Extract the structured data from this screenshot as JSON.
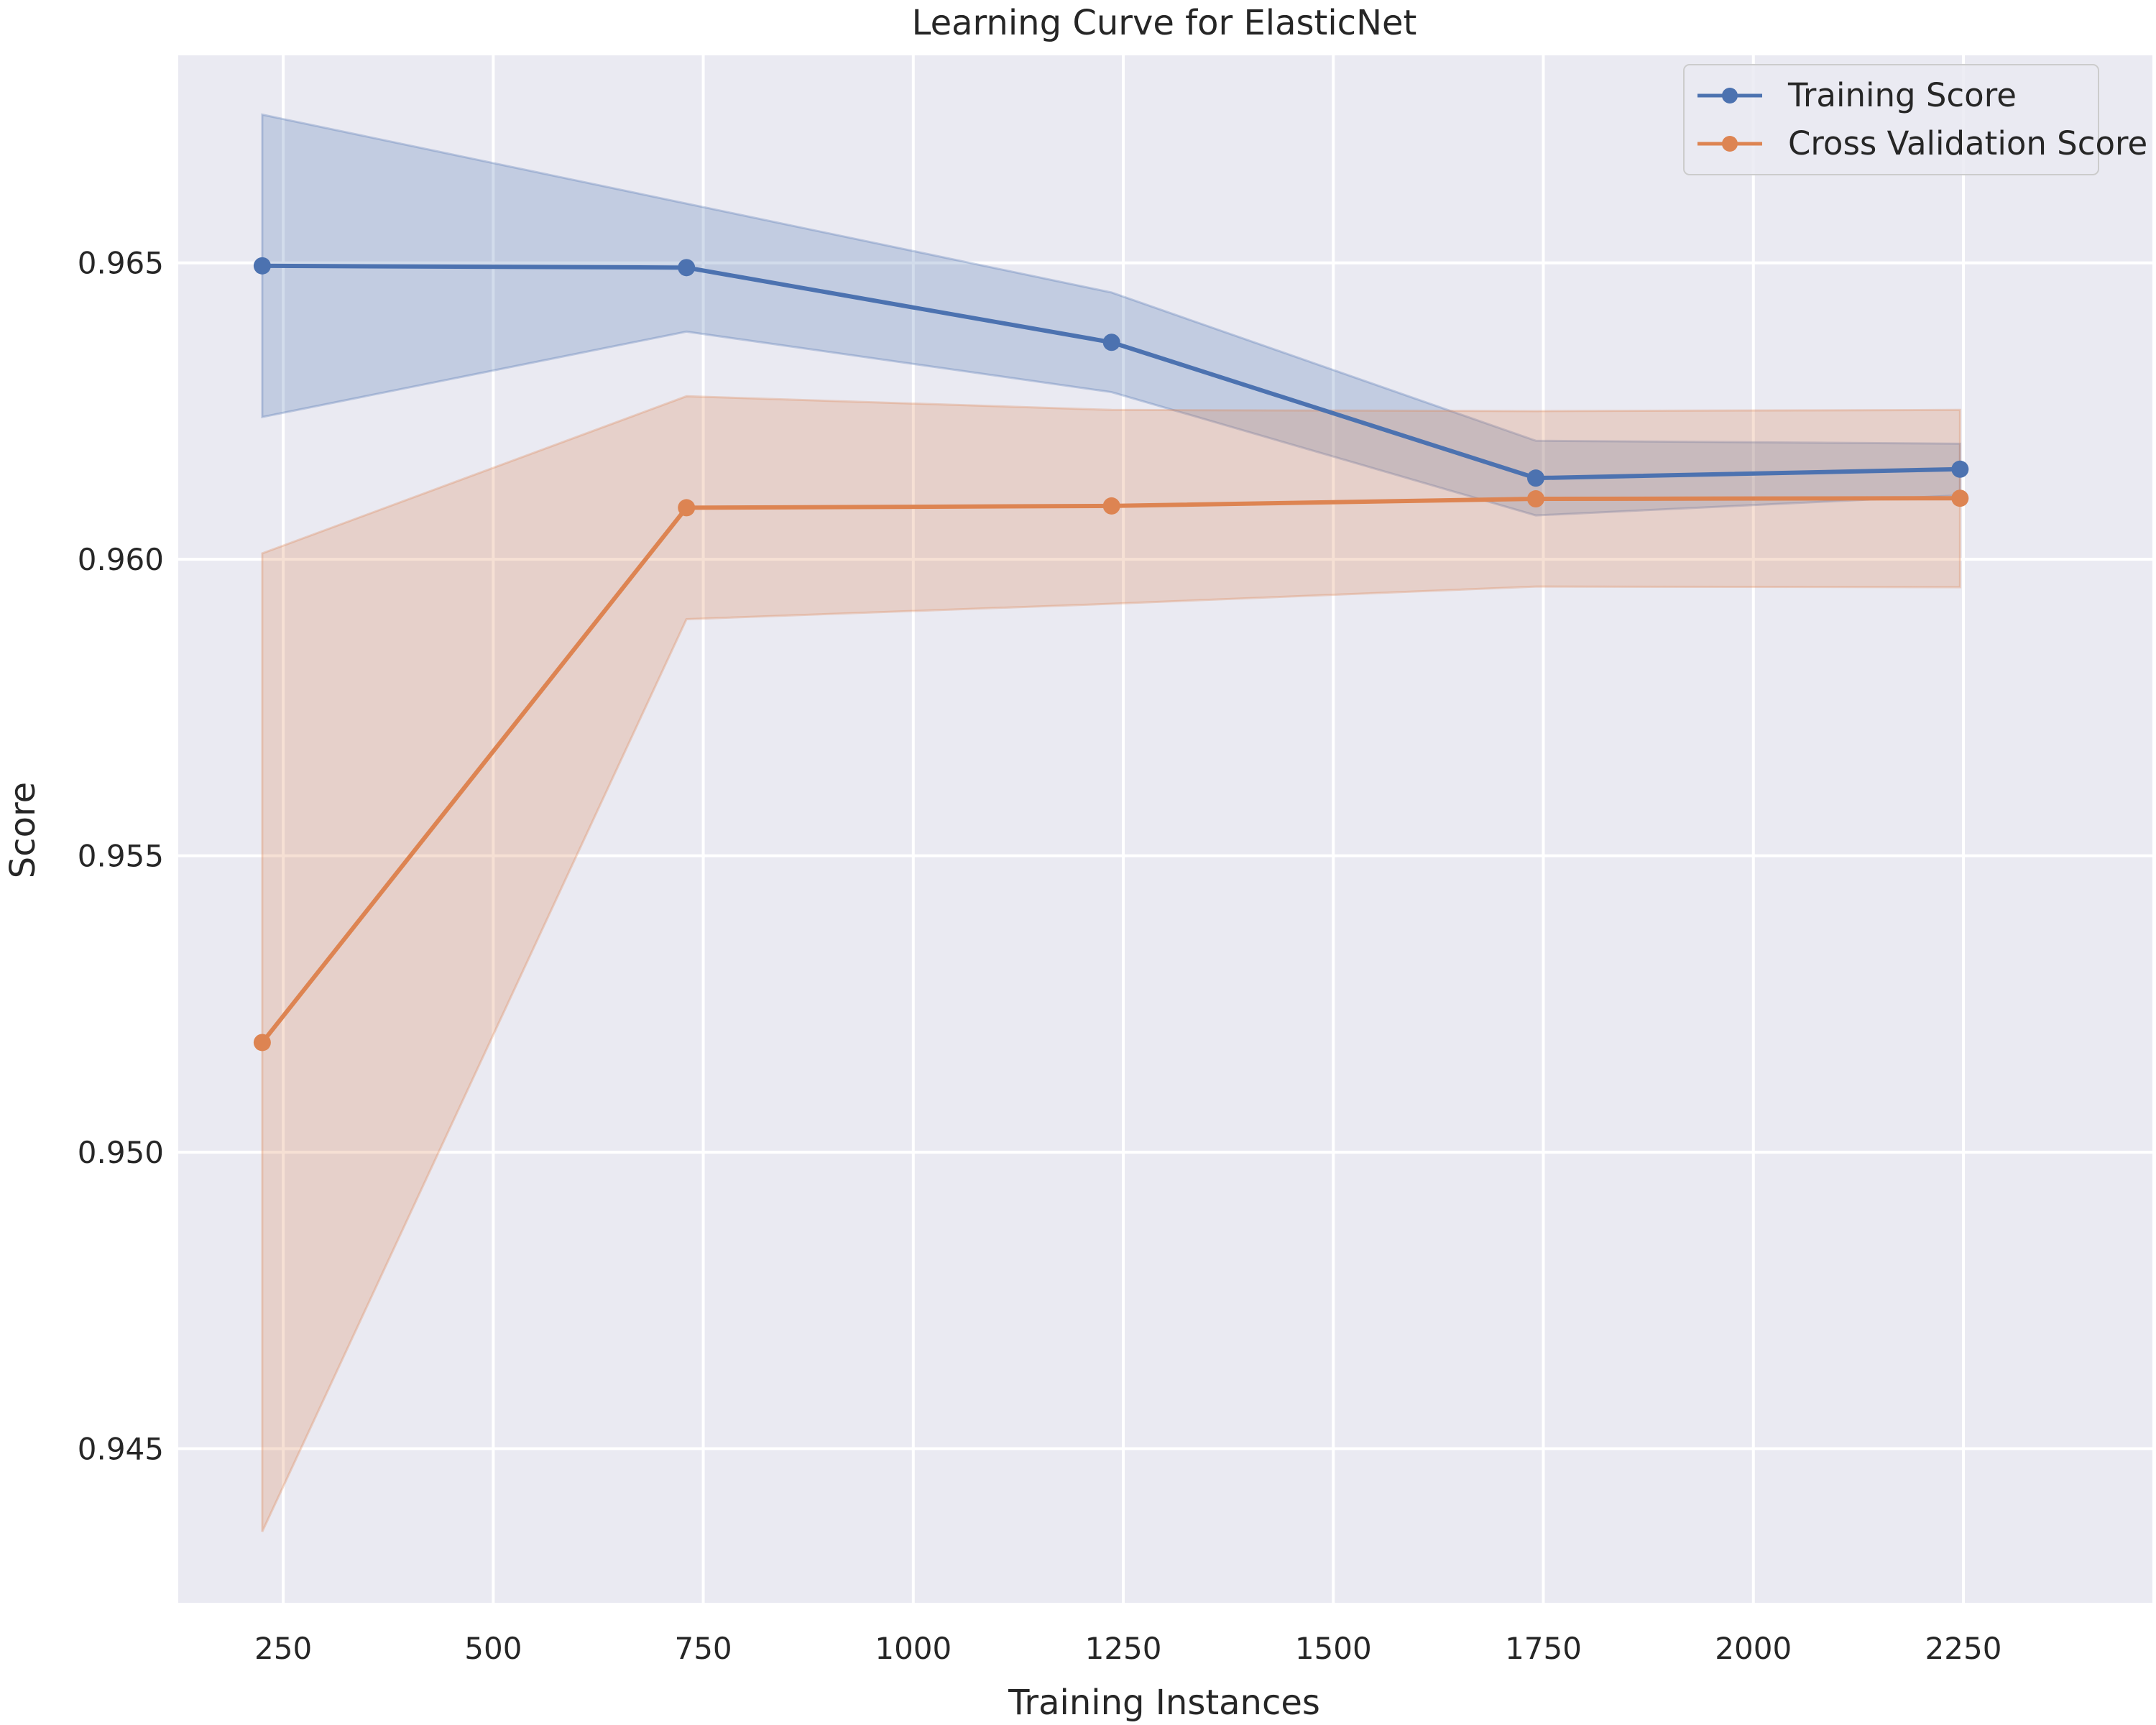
{
  "chart_data": {
    "type": "line",
    "title": "Learning Curve for ElasticNet",
    "xlabel": "Training Instances",
    "ylabel": "Score",
    "xlim": [
      125,
      2475
    ],
    "ylim": [
      0.9424,
      0.9685
    ],
    "xticks": [
      250,
      500,
      750,
      1000,
      1250,
      1500,
      1750,
      2000,
      2250
    ],
    "xtick_labels": [
      "250",
      "500",
      "750",
      "1000",
      "1250",
      "1500",
      "1750",
      "2000",
      "2250"
    ],
    "yticks": [
      0.945,
      0.95,
      0.955,
      0.96,
      0.965
    ],
    "ytick_labels": [
      "0.945",
      "0.950",
      "0.955",
      "0.960",
      "0.965"
    ],
    "grid": true,
    "legend_position": "top-right",
    "x": [
      225,
      730,
      1236,
      1741,
      2246
    ],
    "series": [
      {
        "name": "Training Score",
        "color": "#4c72b0",
        "values": [
          0.96495,
          0.96492,
          0.96366,
          0.96137,
          0.96152
        ],
        "band_upper": [
          0.9675,
          0.966,
          0.9645,
          0.962,
          0.96195
        ],
        "band_lower": [
          0.9624,
          0.96384,
          0.96282,
          0.96074,
          0.96108
        ]
      },
      {
        "name": "Cross Validation Score",
        "color": "#dd8452",
        "values": [
          0.95185,
          0.96087,
          0.9609,
          0.96102,
          0.96103
        ],
        "band_upper": [
          0.9601,
          0.96275,
          0.96252,
          0.9625,
          0.96252
        ],
        "band_lower": [
          0.9436,
          0.95899,
          0.95925,
          0.95954,
          0.95953
        ]
      }
    ]
  }
}
